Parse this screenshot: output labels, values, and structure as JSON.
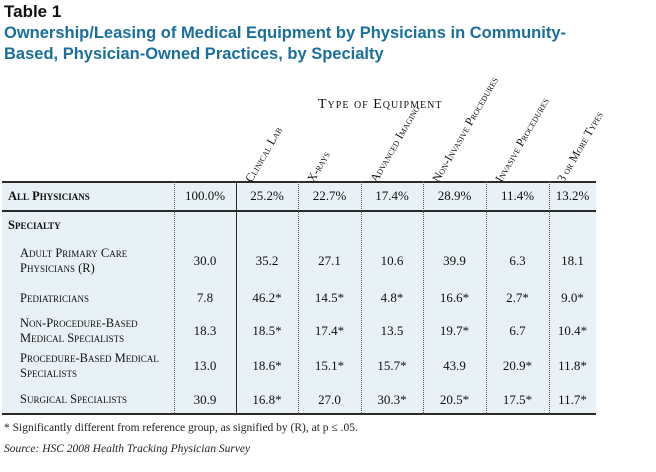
{
  "table_label": "Table 1",
  "title": "Ownership/Leasing of Medical Equipment by Physicians in Community-Based, Physician-Owned Practices, by Specialty",
  "group_header": "Type of Equipment",
  "columns": [
    "Clinical Lab",
    "X-rays",
    "Advanced Imaging",
    "Non-Invasive Procedures",
    "Invasive Procedures",
    "3 or More Types"
  ],
  "rows": [
    {
      "label": "All Physicians",
      "bold": true,
      "first": "100.0%",
      "values": [
        "25.2%",
        "22.7%",
        "17.4%",
        "28.9%",
        "11.4%",
        "13.2%"
      ]
    },
    {
      "label": "Specialty",
      "bold": true,
      "first": "",
      "values": [
        "",
        "",
        "",
        "",
        "",
        ""
      ]
    },
    {
      "label": "Adult Primary Care Physicians (R)",
      "first": "30.0",
      "values": [
        "35.2",
        "27.1",
        "10.6",
        "39.9",
        "6.3",
        "18.1"
      ]
    },
    {
      "label": "Pediatricians",
      "first": "7.8",
      "values": [
        "46.2*",
        "14.5*",
        "4.8*",
        "16.6*",
        "2.7*",
        "9.0*"
      ]
    },
    {
      "label": "Non-Procedure-Based Medical Specialists",
      "first": "18.3",
      "values": [
        "18.5*",
        "17.4*",
        "13.5",
        "19.7*",
        "6.7",
        "10.4*"
      ]
    },
    {
      "label": "Procedure-Based Medical Specialists",
      "first": "13.0",
      "values": [
        "18.6*",
        "15.1*",
        "15.7*",
        "43.9",
        "20.9*",
        "11.8*"
      ]
    },
    {
      "label": "Surgical Specialists",
      "first": "30.9",
      "values": [
        "16.8*",
        "27.0",
        "30.3*",
        "20.5*",
        "17.5*",
        "11.7*"
      ]
    }
  ],
  "footnote": "* Significantly different from reference group, as signified by (R), at p ≤ .05.",
  "source": "Source: HSC 2008 Health Tracking Physician Survey"
}
